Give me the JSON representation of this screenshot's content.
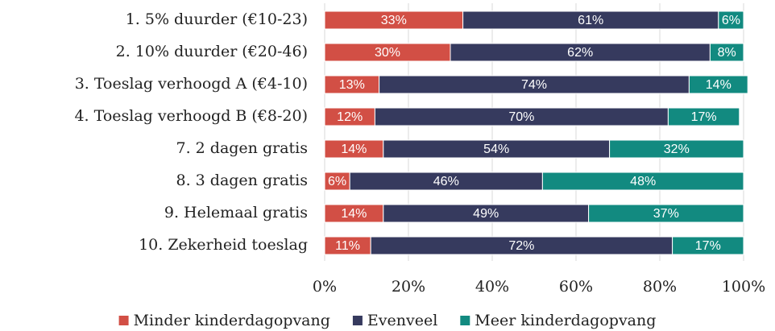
{
  "chart_data": {
    "type": "stacked_barh",
    "categories": [
      "1. 5% duurder (€10-23)",
      "2. 10% duurder (€20-46)",
      "3. Toeslag verhoogd A (€4-10)",
      "4. Toeslag verhoogd B (€8-20)",
      "7. 2 dagen gratis",
      "8. 3 dagen gratis",
      "9. Helemaal gratis",
      "10. Zekerheid toeslag"
    ],
    "series": [
      {
        "name": "Minder kinderdagopvang",
        "color": "#d24f45",
        "values": [
          33,
          30,
          13,
          12,
          14,
          6,
          14,
          11
        ],
        "value_labels": [
          "33%",
          "30%",
          "13%",
          "12%",
          "14%",
          "6%",
          "14%",
          "11%"
        ]
      },
      {
        "name": "Evenveel",
        "color": "#363a5e",
        "values": [
          61,
          62,
          74,
          70,
          54,
          46,
          49,
          72
        ],
        "value_labels": [
          "61%",
          "62%",
          "74%",
          "70%",
          "54%",
          "46%",
          "49%",
          "72%"
        ]
      },
      {
        "name": "Meer kinderdagopvang",
        "color": "#128a80",
        "values": [
          6,
          8,
          14,
          17,
          32,
          48,
          37,
          17
        ],
        "value_labels": [
          "6%",
          "8%",
          "14%",
          "17%",
          "32%",
          "48%",
          "37%",
          "17%"
        ]
      }
    ],
    "xlim": [
      0,
      100
    ],
    "xticks": [
      {
        "value": 0,
        "label": "0%"
      },
      {
        "value": 20,
        "label": "20%"
      },
      {
        "value": 40,
        "label": "40%"
      },
      {
        "value": 60,
        "label": "60%"
      },
      {
        "value": 80,
        "label": "80%"
      },
      {
        "value": 100,
        "label": "100%"
      }
    ],
    "grid": true,
    "legend": "bottom"
  }
}
